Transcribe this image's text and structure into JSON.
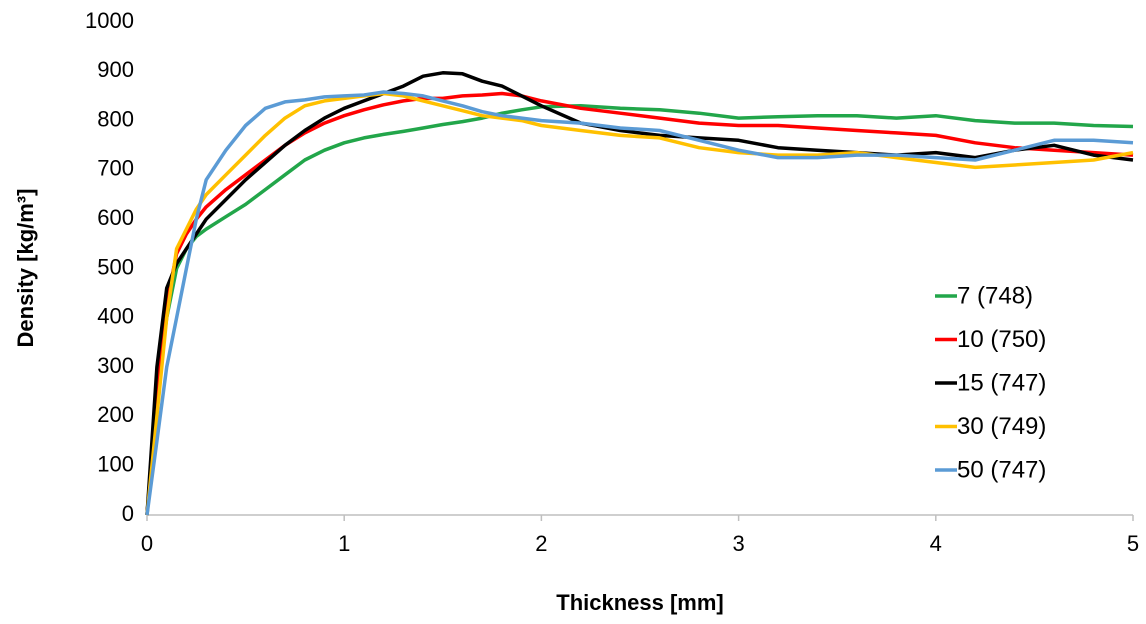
{
  "chart_data": {
    "type": "line",
    "x_label": "Thickness [mm]",
    "y_label": "Density [kg/m³]",
    "x": [
      0,
      0.05,
      0.1,
      0.15,
      0.2,
      0.25,
      0.3,
      0.4,
      0.5,
      0.6,
      0.7,
      0.8,
      0.9,
      1.0,
      1.1,
      1.2,
      1.3,
      1.4,
      1.5,
      1.6,
      1.7,
      1.8,
      1.9,
      2.0,
      2.2,
      2.4,
      2.6,
      2.8,
      3.0,
      3.2,
      3.4,
      3.6,
      3.8,
      4.0,
      4.2,
      4.4,
      4.6,
      4.8,
      5.0
    ],
    "series": [
      {
        "name": "7 (748)",
        "color": "#22a64a",
        "values": [
          0,
          250,
          400,
          500,
          540,
          565,
          580,
          605,
          630,
          660,
          690,
          720,
          740,
          755,
          765,
          772,
          778,
          785,
          792,
          798,
          805,
          815,
          822,
          828,
          830,
          825,
          822,
          815,
          805,
          808,
          810,
          810,
          805,
          810,
          800,
          795,
          795,
          790,
          788
        ]
      },
      {
        "name": "10 (750)",
        "color": "#ff0000",
        "values": [
          0,
          250,
          430,
          530,
          570,
          600,
          625,
          660,
          690,
          720,
          750,
          775,
          795,
          810,
          822,
          832,
          840,
          845,
          845,
          850,
          852,
          855,
          850,
          840,
          825,
          815,
          805,
          795,
          790,
          790,
          785,
          780,
          775,
          770,
          755,
          745,
          740,
          735,
          730
        ]
      },
      {
        "name": "15 (747)",
        "color": "#000000",
        "values": [
          0,
          300,
          460,
          510,
          540,
          570,
          600,
          640,
          680,
          715,
          750,
          780,
          805,
          825,
          840,
          855,
          870,
          890,
          897,
          895,
          880,
          870,
          850,
          830,
          795,
          780,
          770,
          765,
          760,
          745,
          740,
          735,
          730,
          735,
          725,
          740,
          750,
          730,
          720
        ]
      },
      {
        "name": "30 (749)",
        "color": "#ffc000",
        "values": [
          0,
          200,
          400,
          540,
          580,
          620,
          650,
          690,
          730,
          770,
          805,
          830,
          840,
          845,
          850,
          855,
          850,
          840,
          830,
          820,
          810,
          805,
          800,
          790,
          780,
          770,
          765,
          745,
          735,
          730,
          730,
          735,
          725,
          715,
          705,
          710,
          715,
          720,
          735
        ]
      },
      {
        "name": "50 (747)",
        "color": "#5b9bd5",
        "values": [
          0,
          150,
          300,
          400,
          500,
          600,
          680,
          740,
          790,
          825,
          838,
          842,
          848,
          850,
          852,
          858,
          855,
          850,
          840,
          830,
          818,
          810,
          805,
          800,
          795,
          785,
          780,
          760,
          740,
          725,
          725,
          730,
          730,
          725,
          720,
          740,
          760,
          760,
          755
        ]
      }
    ],
    "xlim": [
      0,
      5
    ],
    "xticks": [
      0,
      1,
      2,
      3,
      4,
      5
    ],
    "ylim": [
      0,
      1000
    ],
    "yticks": [
      0,
      100,
      200,
      300,
      400,
      500,
      600,
      700,
      800,
      900,
      1000
    ],
    "grid": false,
    "legend": "right"
  }
}
